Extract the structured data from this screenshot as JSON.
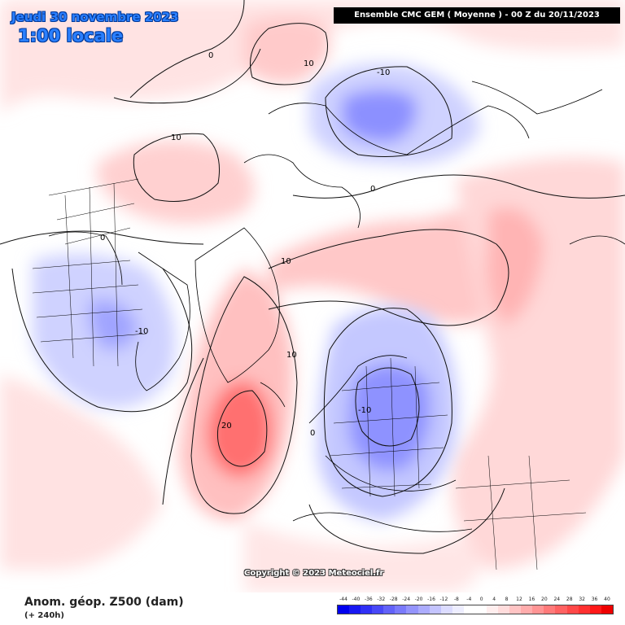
{
  "header": {
    "date": "Jeudi 30 novembre 2023",
    "local_time": "1:00 locale",
    "model_run": "Ensemble CMC GEM  ( Moyenne )  -  00 Z du 20/11/2023"
  },
  "map": {
    "contour_labels": [
      "0",
      "10",
      "10",
      "0",
      "10",
      "0",
      "-10",
      "-10",
      "10",
      "20",
      "0",
      "-10"
    ],
    "colors": {
      "strong_negative": "#5a5cff",
      "weak_negative": "#d8daff",
      "weak_positive": "#ffd6d6",
      "strong_positive": "#ff5050"
    }
  },
  "copyright": "Copyright © 2023 Meteociel.fr",
  "footer": {
    "variable": "Anom. géop. Z500 (dam)",
    "lead_time": "(+ 240h)",
    "scale_labels": [
      "-44",
      "-40",
      "-36",
      "-32",
      "-28",
      "-24",
      "-20",
      "-16",
      "-12",
      "-8",
      "-4",
      "0",
      "4",
      "8",
      "12",
      "16",
      "20",
      "24",
      "28",
      "32",
      "36",
      "40"
    ],
    "scale_colors": [
      "#0000ee",
      "#1818f2",
      "#3030f5",
      "#4848f7",
      "#6262f9",
      "#7a7afb",
      "#9494fc",
      "#acacfd",
      "#c4c4fe",
      "#dcdcff",
      "#eeeeff",
      "#ffffff",
      "#ffffff",
      "#ffeeee",
      "#ffdcdc",
      "#ffc4c4",
      "#ffacac",
      "#ff9494",
      "#ff7a7a",
      "#ff6262",
      "#ff4848",
      "#ff3030",
      "#ff1818",
      "#ee0000"
    ]
  }
}
